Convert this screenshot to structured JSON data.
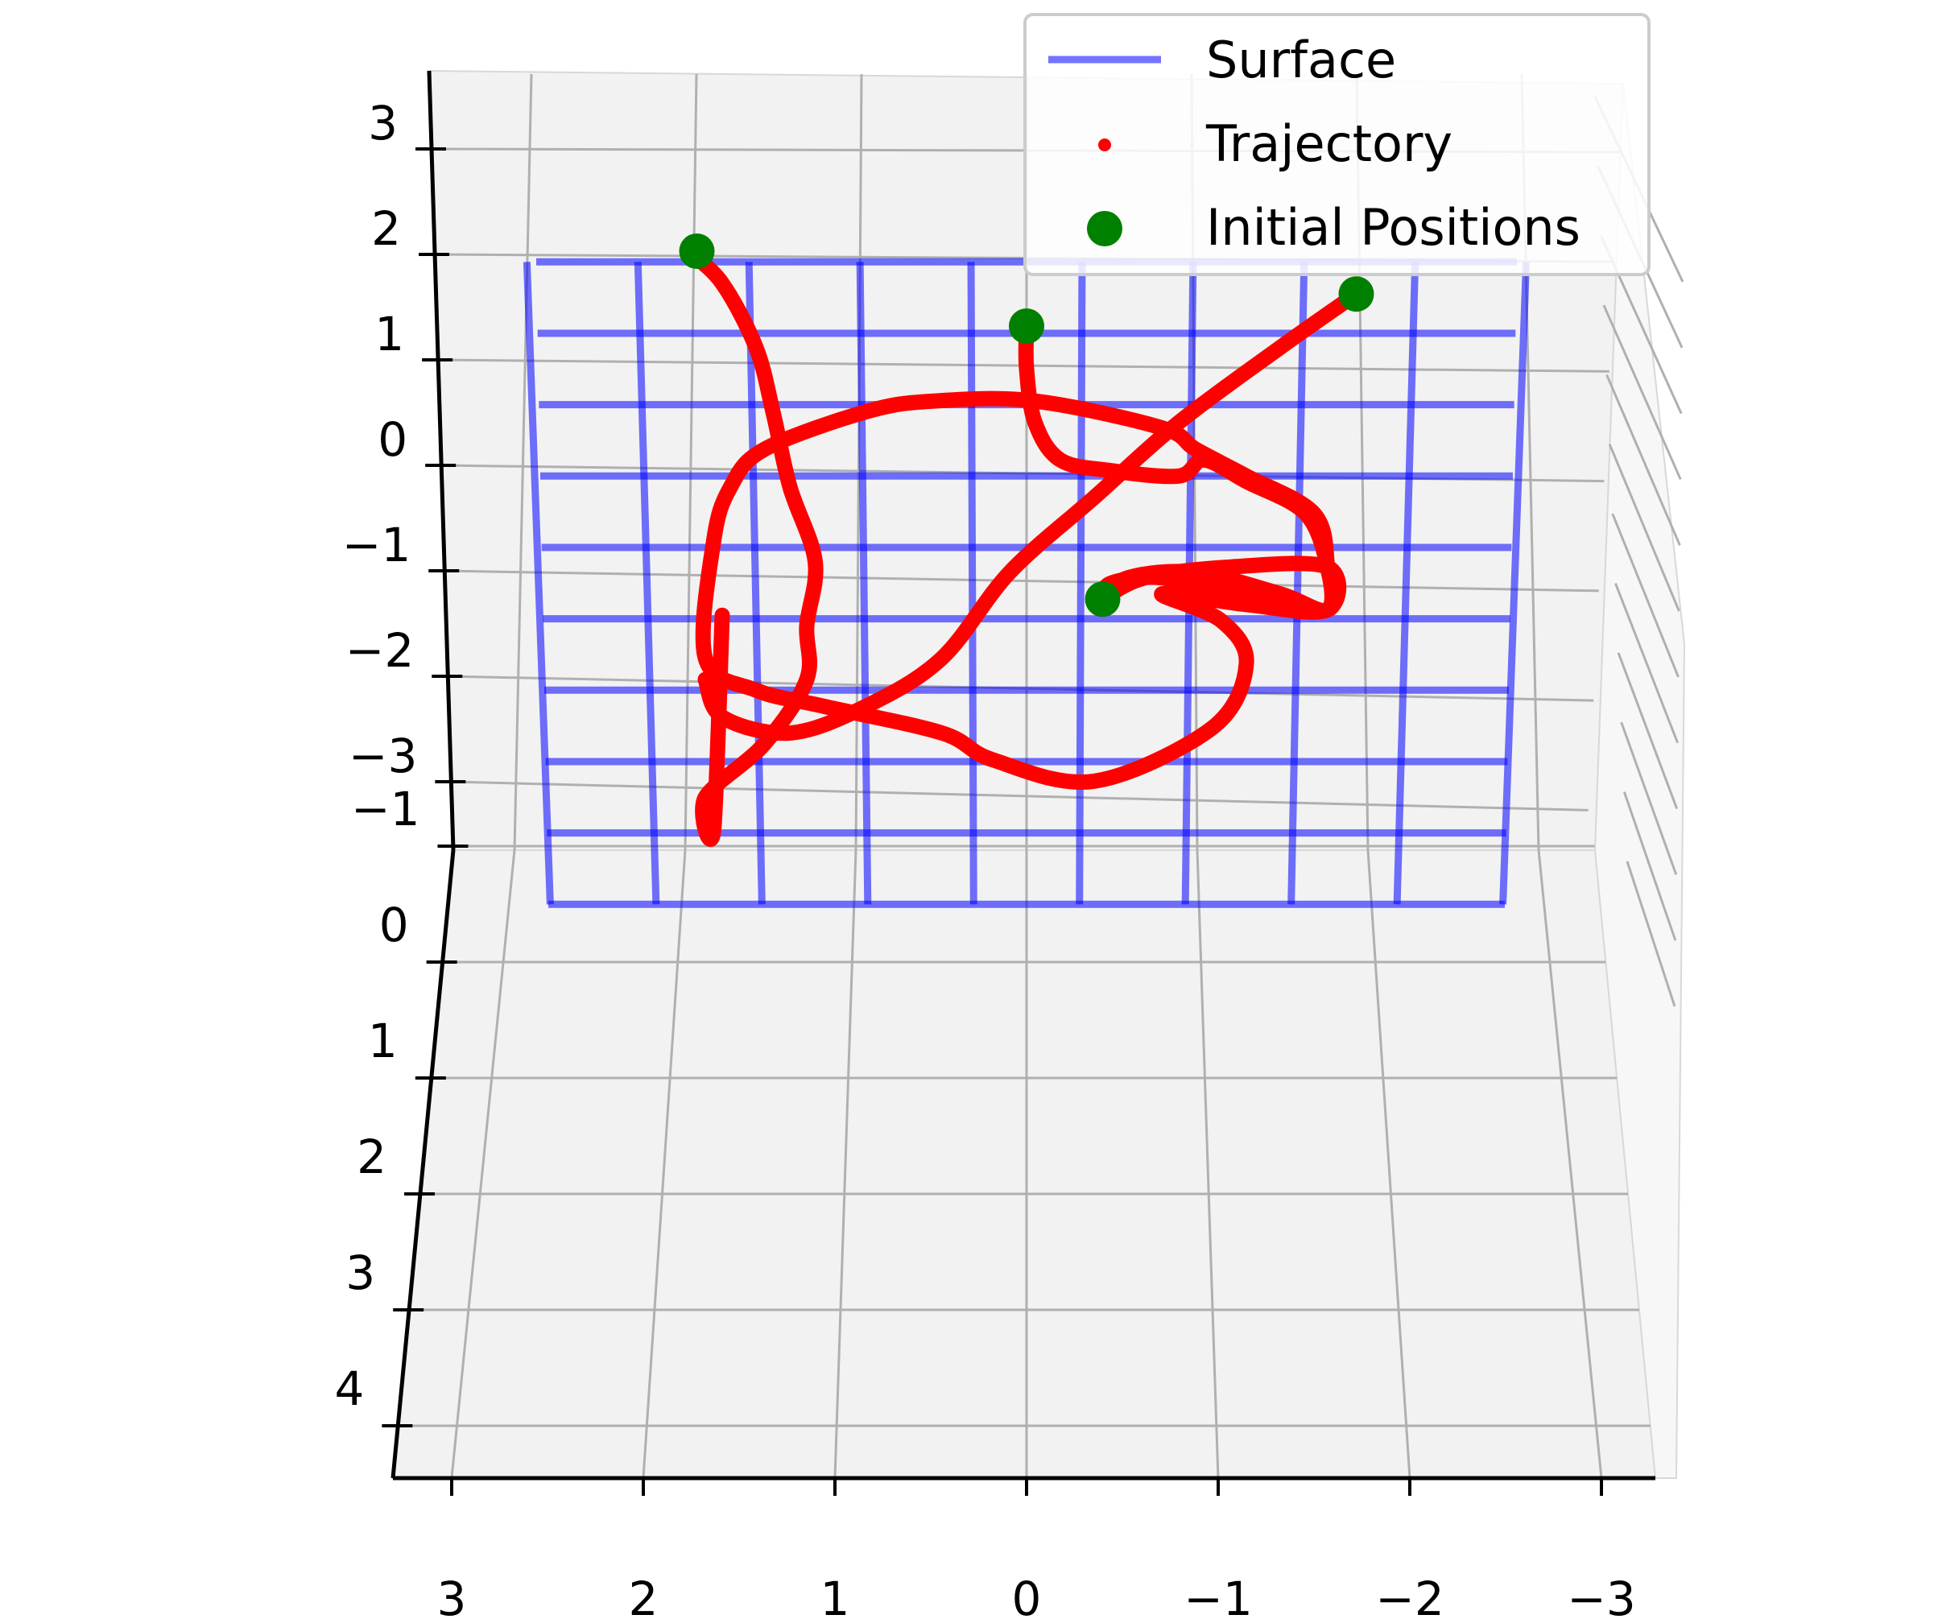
{
  "chart_data": {
    "type": "line",
    "projection": "3d",
    "grid": true,
    "legend_placement": "top-right",
    "x_axis": {
      "ticks": [
        3,
        2,
        1,
        0,
        -1,
        -2,
        -3
      ],
      "tick_labels": [
        "3",
        "2",
        "1",
        "0",
        "−1",
        "−2",
        "−3"
      ],
      "range": [
        3.6,
        -3.7
      ]
    },
    "y_axis": {
      "ticks": [
        -1,
        0,
        1,
        2,
        3,
        4
      ],
      "tick_labels": [
        "−1",
        "0",
        "1",
        "2",
        "3",
        "4"
      ],
      "range": [
        -1.6,
        4
      ]
    },
    "z_axis": {
      "ticks": [
        3,
        2,
        1,
        0,
        -1,
        -2,
        -3
      ],
      "tick_labels": [
        "3",
        "2",
        "1",
        "0",
        "−1",
        "−2",
        "−3"
      ],
      "range": [
        3.7,
        -3.7
      ]
    },
    "legend": [
      {
        "label": "Surface",
        "marker": "line",
        "color": "#0000ff"
      },
      {
        "label": "Trajectory",
        "marker": "small-dot",
        "color": "#ff0000"
      },
      {
        "label": "Initial Positions",
        "marker": "dot",
        "color": "#008000"
      }
    ],
    "colors": {
      "surface": "#0000ff",
      "trajectory": "#ff0000",
      "initial": "#008000",
      "pane": "#f2f2f2",
      "grid": "#b0b0b0"
    },
    "surface": {
      "x_range": [
        2.9,
        -2.9
      ],
      "z_range": [
        1.9,
        -4.1
      ],
      "grid_lines": 10,
      "plane_y": -1.6
    },
    "trajectories": [
      {
        "points": [
          [
            0.0,
            1.3
          ],
          [
            0.0,
            0.9
          ],
          [
            -0.05,
            0.4
          ],
          [
            -0.2,
            0.05
          ],
          [
            -0.5,
            -0.05
          ],
          [
            -0.9,
            -0.1
          ],
          [
            -1.05,
            0.05
          ],
          [
            -1.3,
            -0.15
          ],
          [
            -1.65,
            -0.45
          ],
          [
            -1.78,
            -0.95
          ],
          [
            -1.78,
            -1.35
          ],
          [
            -1.5,
            -1.2
          ],
          [
            -1.0,
            -1.0
          ],
          [
            -0.6,
            -1.05
          ],
          [
            -0.45,
            -1.25
          ]
        ]
      },
      {
        "points": [
          [
            -0.45,
            -1.25
          ],
          [
            -0.7,
            -1.05
          ],
          [
            -1.2,
            -0.95
          ],
          [
            -1.78,
            -0.95
          ],
          [
            -1.78,
            -1.35
          ],
          [
            -1.3,
            -1.3
          ],
          [
            -0.8,
            -1.2
          ],
          [
            -1.15,
            -1.45
          ],
          [
            -1.3,
            -1.85
          ],
          [
            -1.1,
            -2.45
          ],
          [
            -0.4,
            -2.95
          ],
          [
            0.2,
            -2.75
          ],
          [
            0.5,
            -2.5
          ],
          [
            1.2,
            -2.25
          ],
          [
            1.6,
            -2.1
          ],
          [
            1.9,
            -1.8
          ],
          [
            1.85,
            -0.7
          ],
          [
            1.75,
            -0.2
          ],
          [
            1.55,
            0.15
          ],
          [
            0.95,
            0.5
          ],
          [
            0.55,
            0.6
          ],
          [
            -0.05,
            0.6
          ],
          [
            -0.8,
            0.35
          ],
          [
            -1.0,
            0.15
          ],
          [
            -1.3,
            -0.1
          ],
          [
            -1.7,
            -0.45
          ],
          [
            -1.78,
            -0.95
          ],
          [
            -1.78,
            -1.35
          ],
          [
            -1.3,
            -1.2
          ],
          [
            -0.8,
            -1.05
          ],
          [
            -0.5,
            -1.1
          ],
          [
            -0.45,
            -1.25
          ]
        ]
      },
      {
        "points": [
          [
            2.0,
            2.0
          ],
          [
            1.8,
            1.7
          ],
          [
            1.6,
            1.1
          ],
          [
            1.5,
            0.5
          ],
          [
            1.4,
            -0.2
          ],
          [
            1.25,
            -0.9
          ],
          [
            1.3,
            -1.5
          ],
          [
            1.3,
            -2.0
          ],
          [
            1.55,
            -2.6
          ],
          [
            1.9,
            -3.1
          ],
          [
            1.85,
            -3.4
          ],
          [
            1.8,
            -1.4
          ]
        ]
      },
      {
        "points": [
          [
            -1.95,
            1.6
          ],
          [
            -1.5,
            1.1
          ],
          [
            -0.9,
            0.4
          ],
          [
            -0.4,
            -0.3
          ],
          [
            0.1,
            -1.0
          ],
          [
            0.5,
            -1.8
          ],
          [
            0.95,
            -2.25
          ],
          [
            1.4,
            -2.5
          ],
          [
            1.8,
            -2.35
          ],
          [
            1.9,
            -2.0
          ]
        ]
      }
    ],
    "initial_positions": [
      [
        0.0,
        1.3
      ],
      [
        -0.45,
        -1.25
      ],
      [
        1.95,
        2.0
      ],
      [
        -1.95,
        1.6
      ]
    ]
  }
}
